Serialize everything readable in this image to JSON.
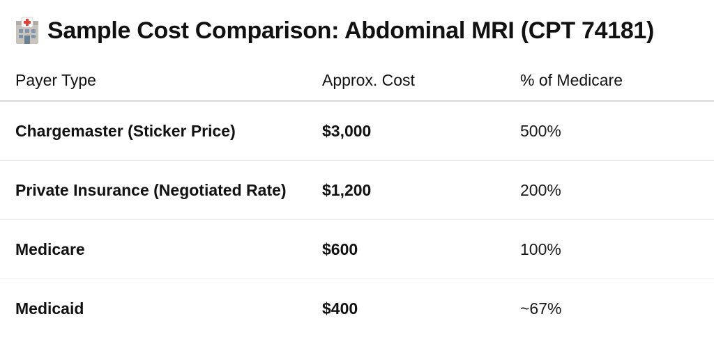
{
  "header": {
    "icon": "hospital-icon",
    "title": "Sample Cost Comparison: Abdominal MRI (CPT 74181)"
  },
  "table": {
    "columns": [
      "Payer Type",
      "Approx. Cost",
      "% of Medicare"
    ],
    "rows": [
      {
        "payer": "Chargemaster (Sticker Price)",
        "cost": "$3,000",
        "pct": "500%"
      },
      {
        "payer": "Private Insurance (Negotiated Rate)",
        "cost": "$1,200",
        "pct": "200%"
      },
      {
        "payer": "Medicare",
        "cost": "$600",
        "pct": "100%"
      },
      {
        "payer": "Medicaid",
        "cost": "$400",
        "pct": "~67%"
      }
    ]
  },
  "colors": {
    "text": "#111111",
    "divider": "#d9d9d9",
    "row_divider": "#ececec",
    "icon_red": "#e0413a"
  }
}
